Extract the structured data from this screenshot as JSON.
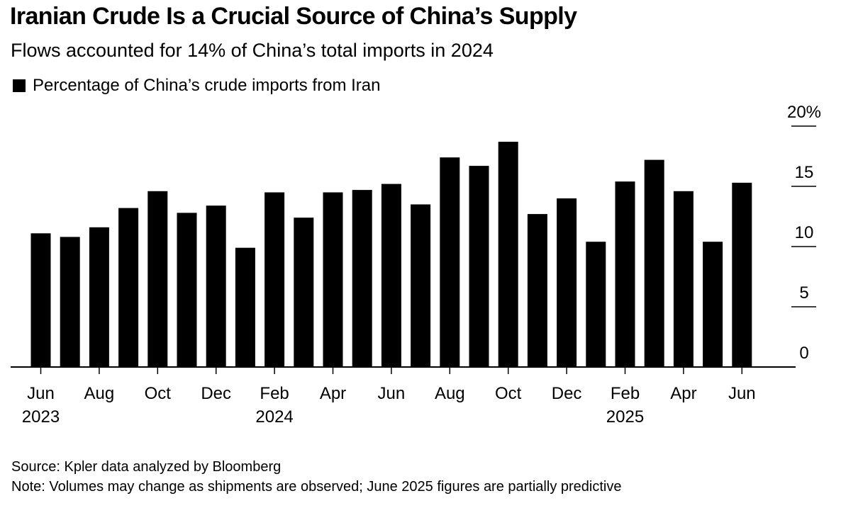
{
  "chart_data": {
    "type": "bar",
    "title": "Iranian Crude Is a Crucial Source of China’s Supply",
    "subtitle": "Flows accounted for 14% of China’s total imports in 2024",
    "legend": [
      "Percentage of China’s crude imports from Iran"
    ],
    "categories": [
      "Jun 2023",
      "Jul 2023",
      "Aug 2023",
      "Sep 2023",
      "Oct 2023",
      "Nov 2023",
      "Dec 2023",
      "Jan 2024",
      "Feb 2024",
      "Mar 2024",
      "Apr 2024",
      "May 2024",
      "Jun 2024",
      "Jul 2024",
      "Aug 2024",
      "Sep 2024",
      "Oct 2024",
      "Nov 2024",
      "Dec 2024",
      "Jan 2025",
      "Feb 2025",
      "Mar 2025",
      "Apr 2025",
      "May 2025",
      "Jun 2025"
    ],
    "values": [
      11.1,
      10.8,
      11.6,
      13.2,
      14.6,
      12.8,
      13.4,
      9.9,
      14.5,
      12.4,
      14.5,
      14.7,
      15.2,
      13.5,
      17.4,
      16.7,
      18.7,
      12.7,
      14.0,
      10.4,
      15.4,
      17.2,
      14.6,
      10.4,
      15.3
    ],
    "series": [
      {
        "name": "Percentage of China’s crude imports from Iran"
      }
    ],
    "ylim": [
      0,
      20
    ],
    "yticks": [
      {
        "value": 0,
        "label": "0"
      },
      {
        "value": 5,
        "label": "5"
      },
      {
        "value": 10,
        "label": "10"
      },
      {
        "value": 15,
        "label": "15"
      },
      {
        "value": 20,
        "label": "20%"
      }
    ],
    "xticks": [
      {
        "index": 0,
        "label": "Jun",
        "year": "2023"
      },
      {
        "index": 2,
        "label": "Aug",
        "year": ""
      },
      {
        "index": 4,
        "label": "Oct",
        "year": ""
      },
      {
        "index": 6,
        "label": "Dec",
        "year": ""
      },
      {
        "index": 8,
        "label": "Feb",
        "year": "2024"
      },
      {
        "index": 10,
        "label": "Apr",
        "year": ""
      },
      {
        "index": 12,
        "label": "Jun",
        "year": ""
      },
      {
        "index": 14,
        "label": "Aug",
        "year": ""
      },
      {
        "index": 16,
        "label": "Oct",
        "year": ""
      },
      {
        "index": 18,
        "label": "Dec",
        "year": ""
      },
      {
        "index": 20,
        "label": "Feb",
        "year": "2025"
      },
      {
        "index": 22,
        "label": "Apr",
        "year": ""
      },
      {
        "index": 24,
        "label": "Jun",
        "year": ""
      }
    ],
    "colors": {
      "bar": "#000000",
      "axis": "#000000"
    }
  },
  "footer": {
    "source": "Source: Kpler data analyzed by Bloomberg",
    "note": "Note: Volumes may change as shipments are observed; June 2025 figures are partially predictive"
  }
}
